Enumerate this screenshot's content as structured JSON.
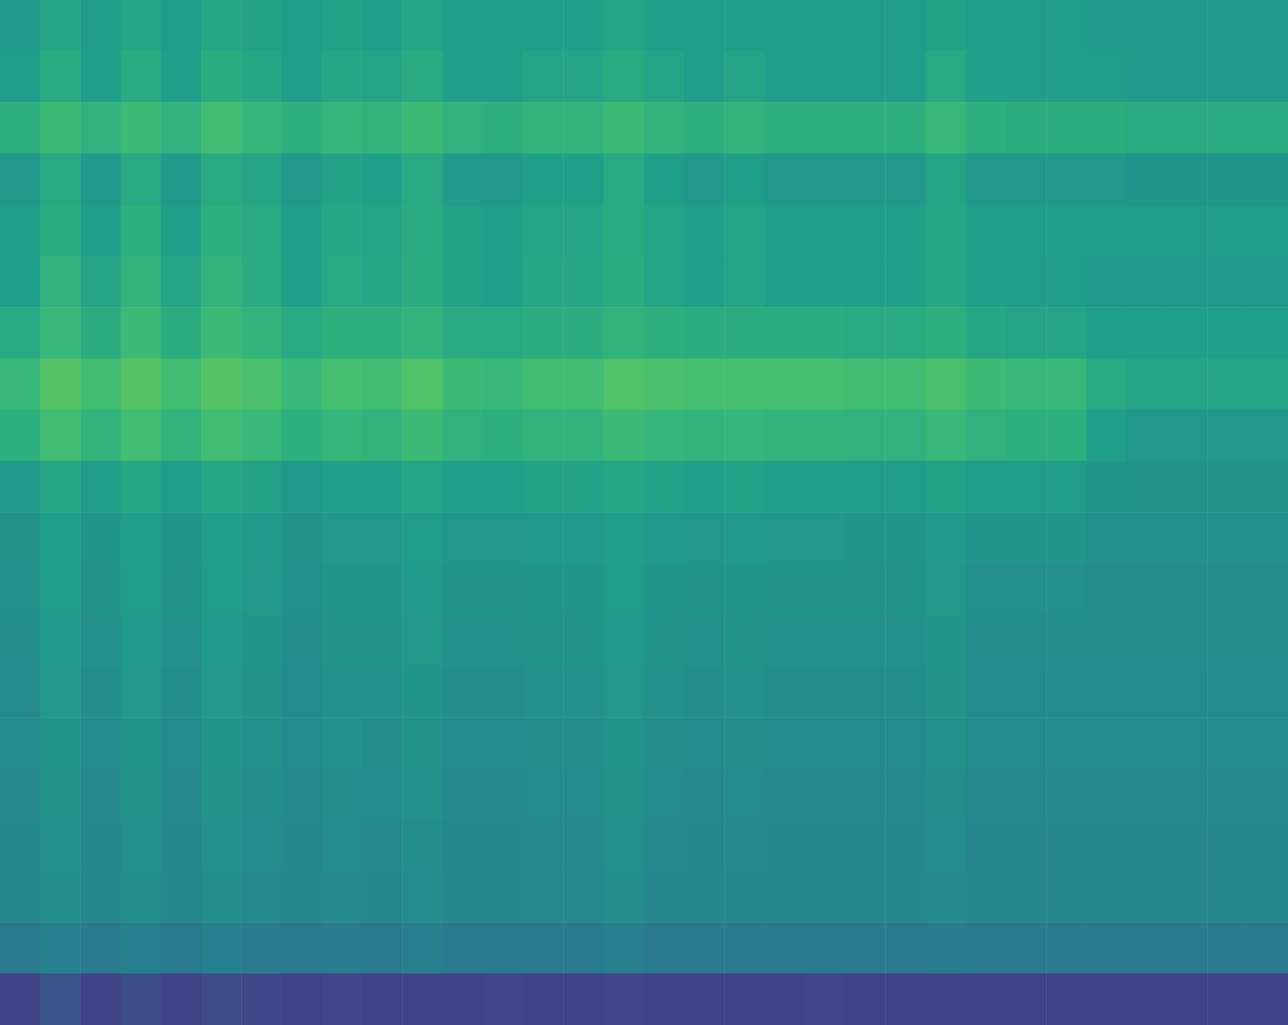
{
  "chart_data": {
    "type": "heatmap",
    "tick_labels": false,
    "grid": false,
    "color_range": [
      0,
      10
    ],
    "cells": [
      [
        5.4,
        5.8,
        5.5,
        5.8,
        5.5,
        5.9,
        5.7,
        5.5,
        5.7,
        5.6,
        5.8,
        5.5,
        5.5,
        5.6,
        5.6,
        5.8,
        5.6,
        5.5,
        5.6,
        5.5,
        5.5,
        5.5,
        5.5,
        5.7,
        5.5,
        5.5,
        5.5,
        5.4,
        5.4,
        5.4,
        5.4,
        5.4
      ],
      [
        5.5,
        6.1,
        5.6,
        6.1,
        5.6,
        6.2,
        5.9,
        5.5,
        5.9,
        5.8,
        6.1,
        5.6,
        5.5,
        5.8,
        5.8,
        6.1,
        5.8,
        5.5,
        5.8,
        5.5,
        5.5,
        5.5,
        5.5,
        6.0,
        5.6,
        5.5,
        5.5,
        5.5,
        5.4,
        5.4,
        5.4,
        5.4
      ],
      [
        6.3,
        6.8,
        6.4,
        6.8,
        6.4,
        6.9,
        6.6,
        6.3,
        6.6,
        6.5,
        6.8,
        6.4,
        6.3,
        6.5,
        6.5,
        6.8,
        6.5,
        6.3,
        6.5,
        6.3,
        6.3,
        6.3,
        6.3,
        6.7,
        6.3,
        6.2,
        6.2,
        6.2,
        6.1,
        6.1,
        6.1,
        6.1
      ],
      [
        5.3,
        6.0,
        5.4,
        6.0,
        5.4,
        6.1,
        5.8,
        5.3,
        5.7,
        5.6,
        6.0,
        5.4,
        5.3,
        5.6,
        5.6,
        6.0,
        5.6,
        5.3,
        5.6,
        5.3,
        5.3,
        5.3,
        5.3,
        5.8,
        5.3,
        5.3,
        5.3,
        5.3,
        5.2,
        5.2,
        5.2,
        5.2
      ],
      [
        5.5,
        6.2,
        5.6,
        6.3,
        5.6,
        6.3,
        6.0,
        5.5,
        5.9,
        5.8,
        6.1,
        5.7,
        5.6,
        5.8,
        5.8,
        6.1,
        5.8,
        5.6,
        5.8,
        5.6,
        5.6,
        5.6,
        5.6,
        5.9,
        5.6,
        5.6,
        5.6,
        5.6,
        5.5,
        5.5,
        5.5,
        5.5
      ],
      [
        5.6,
        6.4,
        5.8,
        6.5,
        5.8,
        6.5,
        6.1,
        5.6,
        6.0,
        5.9,
        6.2,
        5.7,
        5.6,
        5.9,
        5.9,
        6.2,
        5.8,
        5.6,
        5.8,
        5.6,
        5.6,
        5.6,
        5.6,
        5.9,
        5.6,
        5.5,
        5.5,
        5.4,
        5.4,
        5.4,
        5.4,
        5.4
      ],
      [
        6.0,
        6.7,
        6.2,
        6.8,
        6.2,
        6.8,
        6.5,
        6.0,
        6.3,
        6.3,
        6.5,
        6.1,
        6.0,
        6.2,
        6.2,
        6.5,
        6.3,
        6.2,
        6.2,
        6.2,
        6.2,
        6.1,
        6.1,
        6.3,
        5.9,
        5.8,
        5.8,
        5.6,
        5.6,
        5.6,
        5.6,
        5.6
      ],
      [
        6.7,
        7.3,
        6.9,
        7.3,
        6.9,
        7.3,
        7.1,
        6.7,
        7.0,
        6.9,
        7.2,
        6.8,
        6.7,
        6.9,
        6.9,
        7.2,
        7.1,
        7.0,
        7.0,
        7.0,
        7.0,
        6.9,
        6.9,
        7.1,
        6.8,
        6.7,
        6.7,
        6.0,
        5.8,
        5.8,
        5.8,
        5.8
      ],
      [
        6.3,
        6.9,
        6.5,
        6.9,
        6.5,
        6.9,
        6.7,
        6.3,
        6.6,
        6.5,
        6.8,
        6.4,
        6.3,
        6.5,
        6.5,
        6.8,
        6.6,
        6.5,
        6.6,
        6.5,
        6.5,
        6.4,
        6.4,
        6.7,
        6.4,
        6.3,
        6.3,
        5.6,
        5.3,
        5.3,
        5.3,
        5.3
      ],
      [
        5.4,
        5.9,
        5.5,
        5.9,
        5.5,
        5.9,
        5.7,
        5.4,
        5.6,
        5.6,
        5.8,
        5.6,
        5.6,
        5.7,
        5.7,
        5.9,
        5.7,
        5.6,
        5.7,
        5.6,
        5.6,
        5.5,
        5.5,
        5.7,
        5.5,
        5.5,
        5.5,
        5.2,
        5.1,
        5.1,
        5.1,
        5.1
      ],
      [
        5.1,
        5.6,
        5.2,
        5.6,
        5.2,
        5.6,
        5.4,
        5.1,
        5.3,
        5.3,
        5.5,
        5.3,
        5.3,
        5.4,
        5.4,
        5.6,
        5.4,
        5.3,
        5.4,
        5.3,
        5.3,
        5.2,
        5.2,
        5.4,
        5.2,
        5.2,
        5.2,
        5.0,
        5.0,
        5.0,
        5.0,
        5.0
      ],
      [
        5.0,
        5.5,
        5.1,
        5.5,
        5.1,
        5.5,
        5.3,
        5.0,
        5.2,
        5.2,
        5.4,
        5.1,
        5.1,
        5.2,
        5.2,
        5.5,
        5.2,
        5.1,
        5.2,
        5.1,
        5.1,
        5.1,
        5.1,
        5.3,
        5.0,
        5.0,
        5.0,
        4.9,
        4.9,
        4.9,
        4.9,
        4.9
      ],
      [
        4.9,
        5.4,
        5.0,
        5.4,
        5.0,
        5.4,
        5.2,
        4.9,
        5.1,
        5.1,
        5.3,
        5.0,
        5.0,
        5.1,
        5.1,
        5.4,
        5.1,
        5.0,
        5.1,
        5.0,
        5.0,
        5.0,
        5.0,
        5.2,
        4.9,
        4.9,
        4.9,
        4.9,
        4.9,
        4.9,
        4.9,
        4.9
      ],
      [
        4.8,
        5.3,
        4.9,
        5.3,
        4.9,
        5.3,
        5.1,
        4.8,
        5.0,
        5.0,
        5.2,
        4.9,
        4.9,
        5.0,
        5.0,
        5.3,
        5.0,
        4.9,
        5.0,
        4.9,
        4.9,
        4.9,
        4.9,
        5.1,
        4.8,
        4.8,
        4.8,
        4.8,
        4.8,
        4.8,
        4.8,
        4.8
      ],
      [
        4.8,
        5.2,
        4.8,
        5.2,
        4.8,
        5.2,
        5.0,
        4.8,
        5.0,
        4.9,
        5.1,
        4.8,
        4.8,
        4.9,
        4.9,
        5.2,
        4.9,
        4.8,
        4.9,
        4.8,
        4.8,
        4.8,
        4.8,
        5.0,
        4.8,
        4.8,
        4.8,
        4.8,
        4.8,
        4.8,
        4.8,
        4.8
      ],
      [
        4.7,
        5.1,
        4.7,
        5.1,
        4.7,
        5.1,
        4.9,
        4.7,
        4.9,
        4.8,
        5.0,
        4.7,
        4.7,
        4.8,
        4.8,
        5.1,
        4.8,
        4.7,
        4.8,
        4.7,
        4.7,
        4.7,
        4.7,
        4.9,
        4.7,
        4.7,
        4.7,
        4.7,
        4.7,
        4.7,
        4.7,
        4.7
      ],
      [
        4.6,
        5.0,
        4.6,
        5.0,
        4.6,
        5.0,
        4.8,
        4.6,
        4.8,
        4.7,
        4.9,
        4.6,
        4.6,
        4.7,
        4.7,
        5.0,
        4.7,
        4.6,
        4.7,
        4.6,
        4.6,
        4.6,
        4.6,
        4.8,
        4.6,
        4.6,
        4.6,
        4.6,
        4.6,
        4.6,
        4.6,
        4.6
      ],
      [
        4.6,
        4.9,
        4.6,
        4.9,
        4.6,
        4.9,
        4.7,
        4.6,
        4.7,
        4.6,
        4.8,
        4.6,
        4.6,
        4.7,
        4.7,
        4.9,
        4.6,
        4.6,
        4.6,
        4.6,
        4.6,
        4.6,
        4.6,
        4.7,
        4.6,
        4.6,
        4.6,
        4.6,
        4.6,
        4.6,
        4.6,
        4.6
      ],
      [
        4.1,
        4.4,
        4.1,
        4.4,
        4.1,
        4.4,
        4.2,
        4.1,
        4.2,
        4.1,
        4.3,
        4.1,
        4.1,
        4.1,
        4.1,
        4.3,
        4.1,
        4.1,
        4.1,
        4.1,
        4.1,
        4.1,
        4.1,
        4.2,
        4.1,
        4.1,
        4.1,
        4.1,
        4.1,
        4.1,
        4.1,
        4.1
      ],
      [
        2.0,
        2.6,
        2.0,
        2.4,
        2.0,
        2.3,
        2.2,
        2.0,
        2.1,
        2.0,
        2.0,
        2.0,
        2.1,
        2.0,
        2.0,
        2.1,
        2.0,
        2.0,
        2.0,
        2.0,
        2.1,
        2.0,
        2.0,
        2.0,
        2.0,
        2.0,
        2.0,
        2.0,
        2.0,
        2.0,
        2.0,
        2.0
      ]
    ]
  }
}
